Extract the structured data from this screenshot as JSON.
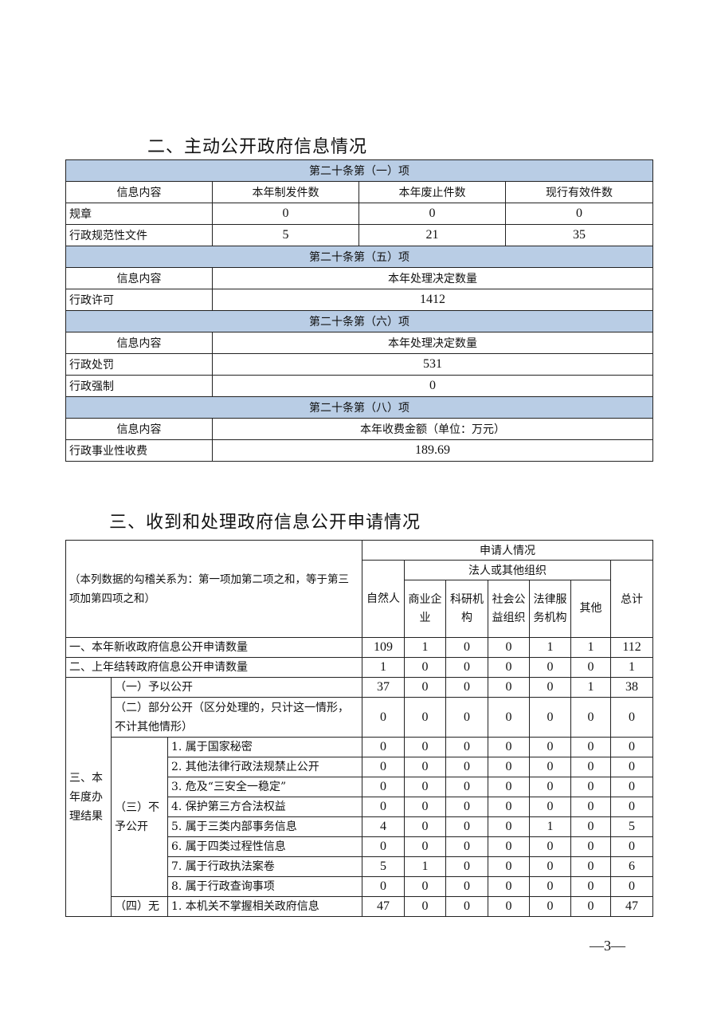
{
  "section2": {
    "title": "二、主动公开政府信息情况",
    "blocks": [
      {
        "header": "第二十条第（一）项",
        "columns": [
          "信息内容",
          "本年制发件数",
          "本年废止件数",
          "现行有效件数"
        ],
        "rows": [
          [
            "规章",
            "0",
            "0",
            "0"
          ],
          [
            "行政规范性文件",
            "5",
            "21",
            "35"
          ]
        ]
      },
      {
        "header": "第二十条第（五）项",
        "columns": [
          "信息内容",
          "本年处理决定数量"
        ],
        "rows": [
          [
            "行政许可",
            "1412"
          ]
        ]
      },
      {
        "header": "第二十条第（六）项",
        "columns": [
          "信息内容",
          "本年处理决定数量"
        ],
        "rows": [
          [
            "行政处罚",
            "531"
          ],
          [
            "行政强制",
            "0"
          ]
        ]
      },
      {
        "header": "第二十条第（八）项",
        "columns": [
          "信息内容",
          "本年收费金额（单位：万元）"
        ],
        "rows": [
          [
            "行政事业性收费",
            "189.69"
          ]
        ]
      }
    ]
  },
  "section3": {
    "title": "三、收到和处理政府信息公开申请情况",
    "note": "（本列数据的勾稽关系为：第一项加第二项之和，等于第三项加第四项之和）",
    "applicant_header": "申请人情况",
    "natural_person": "自然人",
    "org_header": "法人或其他组织",
    "org_columns": [
      "商业企业",
      "科研机构",
      "社会公益组织",
      "法律服务机构",
      "其他"
    ],
    "total": "总计",
    "row1": {
      "label": "一、本年新收政府信息公开申请数量",
      "values": [
        "109",
        "1",
        "0",
        "0",
        "1",
        "1",
        "112"
      ]
    },
    "row2": {
      "label": "二、上年结转政府信息公开申请数量",
      "values": [
        "1",
        "0",
        "0",
        "0",
        "0",
        "0",
        "1"
      ]
    },
    "results_label": "三、本年度办理结果",
    "disclosed": {
      "label": "（一）予以公开",
      "values": [
        "37",
        "0",
        "0",
        "0",
        "0",
        "1",
        "38"
      ]
    },
    "partial": {
      "label": "（二）部分公开（区分处理的，只计这一情形，不计其他情形）",
      "values": [
        "0",
        "0",
        "0",
        "0",
        "0",
        "0",
        "0"
      ]
    },
    "not_disclosed_label": "（三）不予公开",
    "not_disclosed": [
      {
        "label": "1. 属于国家秘密",
        "values": [
          "0",
          "0",
          "0",
          "0",
          "0",
          "0",
          "0"
        ]
      },
      {
        "label": "2. 其他法律行政法规禁止公开",
        "values": [
          "0",
          "0",
          "0",
          "0",
          "0",
          "0",
          "0"
        ]
      },
      {
        "label": "3. 危及“三安全一稳定”",
        "values": [
          "0",
          "0",
          "0",
          "0",
          "0",
          "0",
          "0"
        ]
      },
      {
        "label": "4. 保护第三方合法权益",
        "values": [
          "0",
          "0",
          "0",
          "0",
          "0",
          "0",
          "0"
        ]
      },
      {
        "label": "5. 属于三类内部事务信息",
        "values": [
          "4",
          "0",
          "0",
          "0",
          "1",
          "0",
          "5"
        ]
      },
      {
        "label": "6. 属于四类过程性信息",
        "values": [
          "0",
          "0",
          "0",
          "0",
          "0",
          "0",
          "0"
        ]
      },
      {
        "label": "7. 属于行政执法案卷",
        "values": [
          "5",
          "1",
          "0",
          "0",
          "0",
          "0",
          "6"
        ]
      },
      {
        "label": "8. 属于行政查询事项",
        "values": [
          "0",
          "0",
          "0",
          "0",
          "0",
          "0",
          "0"
        ]
      }
    ],
    "none_label": "（四）无",
    "none": [
      {
        "label": "1. 本机关不掌握相关政府信息",
        "values": [
          "47",
          "0",
          "0",
          "0",
          "0",
          "0",
          "47"
        ]
      }
    ]
  },
  "page_number": "—3—",
  "colors": {
    "section_header_bg": "#b9cde5"
  }
}
